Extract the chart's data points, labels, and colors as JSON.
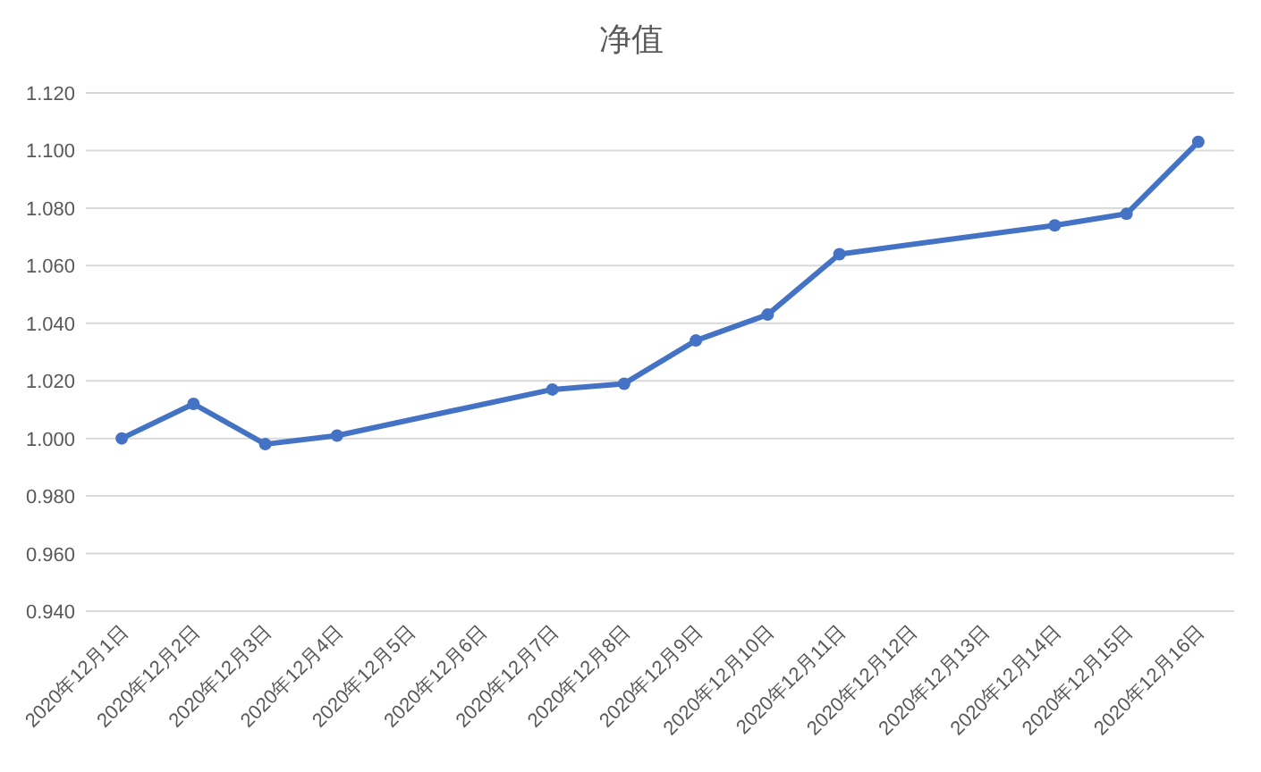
{
  "chart_data": {
    "type": "line",
    "title": "净值",
    "x": [
      "2020-12-01",
      "2020-12-02",
      "2020-12-03",
      "2020-12-04",
      "2020-12-07",
      "2020-12-08",
      "2020-12-09",
      "2020-12-10",
      "2020-12-11",
      "2020-12-14",
      "2020-12-15",
      "2020-12-16"
    ],
    "series": [
      {
        "color": "#4472c4",
        "values": [
          1.0,
          1.012,
          0.998,
          1.001,
          1.017,
          1.019,
          1.034,
          1.043,
          1.064,
          1.074,
          1.078,
          1.103
        ]
      }
    ],
    "xlim": [
      "2020-11-30T12:00",
      "2020-12-16T12:00"
    ],
    "xticks": [
      {
        "value": "2020-12-01",
        "label": "2020年12月1日"
      },
      {
        "value": "2020-12-02",
        "label": "2020年12月2日"
      },
      {
        "value": "2020-12-03",
        "label": "2020年12月3日"
      },
      {
        "value": "2020-12-04",
        "label": "2020年12月4日"
      },
      {
        "value": "2020-12-05",
        "label": "2020年12月5日"
      },
      {
        "value": "2020-12-06",
        "label": "2020年12月6日"
      },
      {
        "value": "2020-12-07",
        "label": "2020年12月7日"
      },
      {
        "value": "2020-12-08",
        "label": "2020年12月8日"
      },
      {
        "value": "2020-12-09",
        "label": "2020年12月9日"
      },
      {
        "value": "2020-12-10",
        "label": "2020年12月10日"
      },
      {
        "value": "2020-12-11",
        "label": "2020年12月11日"
      },
      {
        "value": "2020-12-12",
        "label": "2020年12月12日"
      },
      {
        "value": "2020-12-13",
        "label": "2020年12月13日"
      },
      {
        "value": "2020-12-14",
        "label": "2020年12月14日"
      },
      {
        "value": "2020-12-15",
        "label": "2020年12月15日"
      },
      {
        "value": "2020-12-16",
        "label": "2020年12月16日"
      }
    ],
    "ylim": [
      0.94,
      1.12
    ],
    "yticks": [
      {
        "value": 0.94,
        "label": "0.940"
      },
      {
        "value": 0.96,
        "label": "0.960"
      },
      {
        "value": 0.98,
        "label": "0.980"
      },
      {
        "value": 1.0,
        "label": "1.000"
      },
      {
        "value": 1.02,
        "label": "1.020"
      },
      {
        "value": 1.04,
        "label": "1.040"
      },
      {
        "value": 1.06,
        "label": "1.060"
      },
      {
        "value": 1.08,
        "label": "1.080"
      },
      {
        "value": 1.1,
        "label": "1.100"
      },
      {
        "value": 1.12,
        "label": "1.120"
      }
    ],
    "grid": "y",
    "marker": "circle",
    "line_style": "solid"
  }
}
